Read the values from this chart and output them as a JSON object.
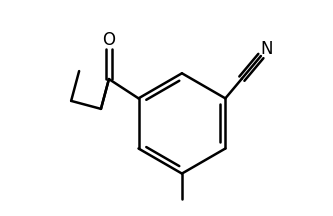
{
  "background_color": "#ffffff",
  "line_color": "#000000",
  "line_width": 1.8,
  "fig_width": 3.33,
  "fig_height": 2.16,
  "dpi": 100,
  "font_size_O": 12,
  "font_size_N": 12
}
